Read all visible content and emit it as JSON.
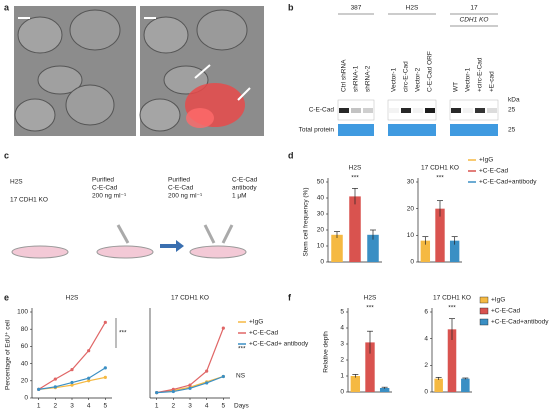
{
  "labels": [
    "a",
    "b",
    "c",
    "d",
    "e",
    "f"
  ],
  "blot": {
    "groups": [
      "387",
      "H2S",
      "17"
    ],
    "ko": "CDH1 KO",
    "lanes": [
      "Ctrl shRNA",
      "shRNA-1",
      "shRNA-2",
      "Vector-1",
      "circ-E-Cad",
      "Vector-2",
      "C-E-Cad ORF",
      "WT",
      "Vector-1",
      "+circ-E-Cad",
      "+E-cad"
    ],
    "kda": "kDa",
    "rows": [
      "C-E-Cad",
      "Total protein"
    ],
    "markers": [
      25,
      25
    ],
    "band": [
      0.9,
      0.25,
      0.2,
      0.05,
      0.9,
      0.05,
      0.95,
      0.9,
      0.05,
      0.85,
      0.15
    ]
  },
  "schematic": {
    "lines": [
      "H2S",
      "17 CDH1 KO"
    ],
    "treatments": [
      [
        "Purified",
        "C-E-Cad",
        "200 ng ml⁻¹"
      ],
      [
        "Purified",
        "C-E-Cad",
        "200 ng ml⁻¹"
      ],
      [
        "C-E-Cad",
        "antibody",
        "1 μM"
      ]
    ]
  },
  "chart_data": [
    {
      "type": "bar",
      "title": "H2S",
      "ylabel": "Stem cell frequency (%)",
      "values": [
        17,
        41,
        17
      ],
      "errors": [
        2,
        5,
        3
      ],
      "colors": [
        "#f5b942",
        "#d9534f",
        "#3a8fc4"
      ],
      "ylim": [
        0,
        50
      ],
      "yticks": [
        0,
        10,
        20,
        30,
        40,
        50
      ],
      "annotations": [
        "***"
      ]
    },
    {
      "type": "bar",
      "title": "17 CDH1 KO",
      "values": [
        8,
        20,
        8
      ],
      "errors": [
        1.5,
        3,
        1.5
      ],
      "colors": [
        "#f5b942",
        "#d9534f",
        "#3a8fc4"
      ],
      "ylim": [
        0,
        30
      ],
      "yticks": [
        0,
        10,
        20,
        30
      ],
      "annotations": [
        "***"
      ],
      "legend": [
        {
          "name": "+IgG",
          "color": "#f5b942"
        },
        {
          "name": "+C-E-Cad",
          "color": "#d9534f"
        },
        {
          "name": "+C-E-Cad+antibody",
          "color": "#3a8fc4"
        }
      ]
    },
    {
      "type": "line",
      "title": "H2S",
      "ylabel": "Percentage of EdU⁺ cell",
      "x": [
        1,
        2,
        3,
        4,
        5
      ],
      "xlim": [
        0.6,
        5.4
      ],
      "xticks": [
        1,
        2,
        3,
        4,
        5
      ],
      "ylim": [
        0,
        100
      ],
      "yticks": [
        0,
        20,
        40,
        60,
        80,
        100
      ],
      "annotations": [
        "***"
      ],
      "series": [
        {
          "color": "#f5b942",
          "values": [
            10,
            12,
            15,
            20,
            24
          ]
        },
        {
          "color": "#e06666",
          "values": [
            10,
            22,
            33,
            55,
            88
          ]
        },
        {
          "color": "#3a8fc4",
          "values": [
            10,
            13,
            18,
            23,
            35
          ]
        }
      ]
    },
    {
      "type": "line",
      "title": "17 CDH1 KO",
      "xlabel": "Days",
      "x": [
        1,
        2,
        3,
        4,
        5
      ],
      "xlim": [
        0.6,
        5.4
      ],
      "xticks": [
        1,
        2,
        3,
        4,
        5
      ],
      "ylim": [
        0,
        80
      ],
      "annotations": [
        "NS",
        "***"
      ],
      "series": [
        {
          "name": "+IgG",
          "color": "#f5b942",
          "values": [
            5,
            7,
            10,
            15,
            20
          ]
        },
        {
          "name": "+C-E-Cad",
          "color": "#e06666",
          "values": [
            5,
            8,
            12,
            25,
            65
          ]
        },
        {
          "name": "+C-E-Cad+ antibody",
          "color": "#3a8fc4",
          "values": [
            5,
            6,
            9,
            14,
            20
          ]
        }
      ]
    },
    {
      "type": "bar",
      "title": "H2S",
      "ylabel": "Relative depth",
      "values": [
        1,
        3.1,
        0.25
      ],
      "errors": [
        0.1,
        0.7,
        0.05
      ],
      "colors": [
        "#f5b942",
        "#d9534f",
        "#3a8fc4"
      ],
      "ylim": [
        0,
        5
      ],
      "yticks": [
        0,
        1,
        2,
        3,
        4,
        5
      ],
      "annotations": [
        "***"
      ]
    },
    {
      "type": "bar",
      "title": "17 CDH1 KO",
      "values": [
        1,
        4.7,
        1
      ],
      "errors": [
        0.1,
        0.8,
        0.05
      ],
      "colors": [
        "#f5b942",
        "#d9534f",
        "#3a8fc4"
      ],
      "ylim": [
        0,
        6
      ],
      "yticks": [
        0,
        2,
        4,
        6
      ],
      "annotations": [
        "***"
      ],
      "legendbox": true,
      "legend": [
        {
          "name": "+IgG",
          "color": "#f5b942"
        },
        {
          "name": "+C-E-Cad",
          "color": "#d9534f"
        },
        {
          "name": "+C-E-Cad+antibody",
          "color": "#3a8fc4"
        }
      ]
    }
  ]
}
